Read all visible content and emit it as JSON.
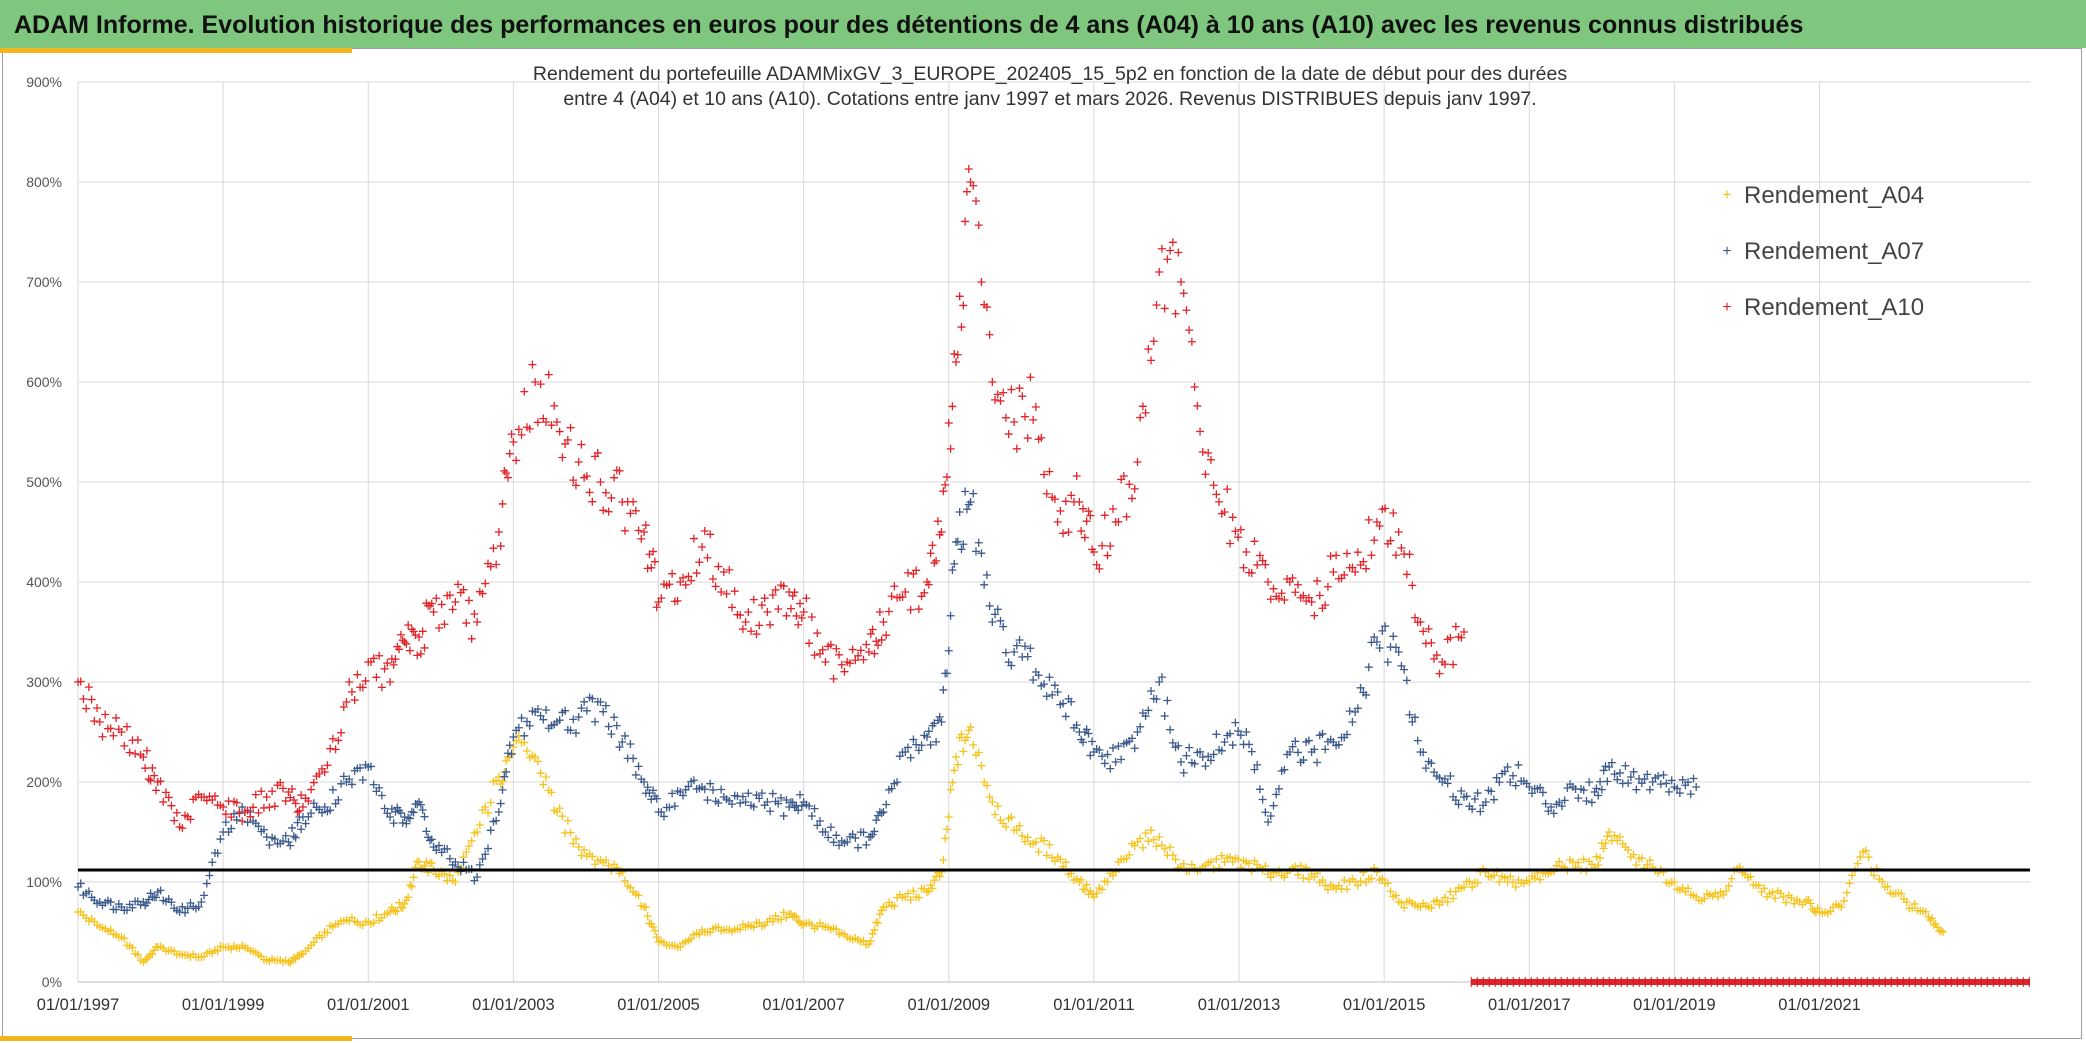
{
  "banner": {
    "title": "ADAM Informe. Evolution historique des performances en euros pour des détentions de 4 ans (A04) à 10 ans (A10) avec les revenus connus distribués"
  },
  "colors": {
    "banner_bg": "#7fc77e",
    "accent": "#f2b51c",
    "series_a04": "#f5c31c",
    "series_a07": "#3d5a8c",
    "series_a10": "#e0242a",
    "reference_line": "#000000",
    "grid": "#d9d9d9"
  },
  "chart_data": {
    "type": "scatter",
    "title_line1": "Rendement du portefeuille ADAMMixGV_3_EUROPE_202405_15_5p2  en fonction de la date de début pour des durées",
    "title_line2": "entre 4 (A04) et 10 ans (A10). Cotations entre janv 1997 et mars 2026. Revenus DISTRIBUES depuis janv 1997.",
    "xlabel": "",
    "ylabel": "",
    "x_unit": "year (decimal)",
    "x_range": [
      1997,
      2023.9
    ],
    "x_ticks": [
      {
        "value": 1997,
        "label": "01/01/1997"
      },
      {
        "value": 1999,
        "label": "01/01/1999"
      },
      {
        "value": 2001,
        "label": "01/01/2001"
      },
      {
        "value": 2003,
        "label": "01/01/2003"
      },
      {
        "value": 2005,
        "label": "01/01/2005"
      },
      {
        "value": 2007,
        "label": "01/01/2007"
      },
      {
        "value": 2009,
        "label": "01/01/2009"
      },
      {
        "value": 2011,
        "label": "01/01/2011"
      },
      {
        "value": 2013,
        "label": "01/01/2013"
      },
      {
        "value": 2015,
        "label": "01/01/2015"
      },
      {
        "value": 2017,
        "label": "01/01/2017"
      },
      {
        "value": 2019,
        "label": "01/01/2019"
      },
      {
        "value": 2021,
        "label": "01/01/2021"
      }
    ],
    "ylim": [
      0,
      900
    ],
    "y_ticks": [
      {
        "value": 0,
        "label": "0%"
      },
      {
        "value": 100,
        "label": "100%"
      },
      {
        "value": 200,
        "label": "200%"
      },
      {
        "value": 300,
        "label": "300%"
      },
      {
        "value": 400,
        "label": "400%"
      },
      {
        "value": 500,
        "label": "500%"
      },
      {
        "value": 600,
        "label": "600%"
      },
      {
        "value": 700,
        "label": "700%"
      },
      {
        "value": 800,
        "label": "800%"
      },
      {
        "value": 900,
        "label": "900%"
      }
    ],
    "grid": true,
    "legend_position": "top-right",
    "reference_line": {
      "y": 112
    },
    "series": [
      {
        "name": "Rendement_A04",
        "marker": "+",
        "x": [
          1997.0,
          1997.3,
          1997.6,
          1997.9,
          1998.1,
          1998.4,
          1998.7,
          1999.0,
          1999.3,
          1999.6,
          1999.9,
          2000.1,
          2000.4,
          2000.7,
          2001.0,
          2001.3,
          2001.5,
          2001.7,
          2001.9,
          2002.2,
          2002.5,
          2002.8,
          2003.0,
          2003.3,
          2003.6,
          2003.9,
          2004.2,
          2004.5,
          2004.8,
          2005.0,
          2005.3,
          2005.6,
          2005.9,
          2006.2,
          2006.5,
          2006.8,
          2007.0,
          2007.3,
          2007.6,
          2007.9,
          2008.1,
          2008.4,
          2008.7,
          2008.9,
          2009.1,
          2009.3,
          2009.6,
          2009.9,
          2010.2,
          2010.5,
          2010.8,
          2011.0,
          2011.3,
          2011.6,
          2011.9,
          2012.2,
          2012.5,
          2012.8,
          2013.1,
          2013.4,
          2013.7,
          2014.0,
          2014.3,
          2014.6,
          2014.9,
          2015.2,
          2015.5,
          2015.8,
          2016.1,
          2016.4,
          2016.7,
          2017.0,
          2017.3,
          2017.6,
          2017.9,
          2018.1,
          2018.4,
          2018.7,
          2019.0,
          2019.3,
          2019.6,
          2019.9,
          2020.2,
          2020.5,
          2020.8,
          2021.0,
          2021.3,
          2021.6,
          2021.9,
          2022.2,
          2022.5,
          2022.7
        ],
        "y": [
          70,
          55,
          45,
          20,
          35,
          28,
          25,
          35,
          35,
          22,
          20,
          28,
          50,
          62,
          60,
          70,
          78,
          120,
          112,
          100,
          150,
          205,
          235,
          225,
          170,
          135,
          122,
          110,
          75,
          40,
          35,
          52,
          52,
          55,
          60,
          68,
          58,
          55,
          45,
          38,
          75,
          85,
          90,
          110,
          225,
          255,
          180,
          152,
          140,
          125,
          100,
          85,
          110,
          140,
          145,
          115,
          115,
          120,
          120,
          108,
          112,
          108,
          95,
          100,
          110,
          80,
          75,
          80,
          95,
          110,
          100,
          100,
          110,
          120,
          115,
          150,
          125,
          115,
          100,
          85,
          85,
          115,
          90,
          85,
          80,
          70,
          75,
          130,
          95,
          80,
          65,
          50
        ]
      },
      {
        "name": "Rendement_A07",
        "marker": "+",
        "x": [
          1997.0,
          1997.3,
          1997.6,
          1997.9,
          1998.1,
          1998.4,
          1998.7,
          1999.0,
          1999.3,
          1999.6,
          1999.9,
          2000.1,
          2000.4,
          2000.7,
          2001.0,
          2001.3,
          2001.5,
          2001.7,
          2001.9,
          2002.2,
          2002.5,
          2002.8,
          2003.0,
          2003.3,
          2003.6,
          2003.9,
          2004.2,
          2004.5,
          2004.8,
          2005.0,
          2005.3,
          2005.6,
          2005.9,
          2006.2,
          2006.5,
          2006.8,
          2007.0,
          2007.3,
          2007.6,
          2007.9,
          2008.1,
          2008.4,
          2008.7,
          2008.9,
          2009.1,
          2009.3,
          2009.6,
          2009.9,
          2010.2,
          2010.5,
          2010.8,
          2011.0,
          2011.3,
          2011.6,
          2011.9,
          2012.2,
          2012.5,
          2012.8,
          2013.1,
          2013.4,
          2013.7,
          2014.0,
          2014.3,
          2014.6,
          2014.9,
          2015.2,
          2015.5,
          2015.8,
          2016.1,
          2016.4,
          2016.7,
          2017.0,
          2017.3,
          2017.6,
          2017.9,
          2018.1,
          2018.4,
          2018.7,
          2019.0,
          2019.3
        ],
        "y": [
          95,
          80,
          75,
          80,
          90,
          70,
          80,
          150,
          170,
          145,
          140,
          165,
          175,
          200,
          215,
          165,
          165,
          180,
          135,
          120,
          105,
          170,
          245,
          270,
          260,
          265,
          280,
          240,
          200,
          170,
          190,
          195,
          185,
          180,
          180,
          175,
          180,
          150,
          140,
          145,
          170,
          230,
          245,
          260,
          440,
          480,
          360,
          330,
          310,
          290,
          250,
          230,
          220,
          250,
          300,
          220,
          225,
          240,
          250,
          160,
          230,
          230,
          240,
          270,
          340,
          330,
          230,
          200,
          185,
          180,
          215,
          195,
          175,
          195,
          190,
          215,
          205,
          200,
          195,
          195
        ]
      },
      {
        "name": "Rendement_A10",
        "marker": "+",
        "x": [
          1997.0,
          1997.3,
          1997.6,
          1997.9,
          1998.1,
          1998.4,
          1998.7,
          1999.0,
          1999.3,
          1999.6,
          1999.9,
          2000.1,
          2000.4,
          2000.7,
          2001.0,
          2001.3,
          2001.5,
          2001.7,
          2001.9,
          2002.2,
          2002.5,
          2002.8,
          2003.0,
          2003.3,
          2003.6,
          2003.9,
          2004.2,
          2004.5,
          2004.8,
          2005.0,
          2005.3,
          2005.6,
          2005.9,
          2006.2,
          2006.5,
          2006.8,
          2007.0,
          2007.3,
          2007.6,
          2007.9,
          2008.1,
          2008.4,
          2008.7,
          2008.9,
          2009.1,
          2009.3,
          2009.6,
          2009.9,
          2010.2,
          2010.5,
          2010.8,
          2011.0,
          2011.3,
          2011.6,
          2011.9,
          2012.2,
          2012.5,
          2012.8,
          2013.1,
          2013.4,
          2013.7,
          2014.0,
          2014.3,
          2014.6,
          2014.9,
          2015.2,
          2015.5,
          2015.8,
          2016.1
        ],
        "y": [
          300,
          260,
          250,
          225,
          200,
          155,
          185,
          175,
          170,
          185,
          190,
          175,
          210,
          280,
          320,
          300,
          340,
          345,
          370,
          380,
          360,
          450,
          540,
          600,
          560,
          520,
          500,
          480,
          450,
          380,
          400,
          435,
          410,
          360,
          370,
          390,
          370,
          320,
          320,
          330,
          360,
          390,
          400,
          450,
          620,
          800,
          600,
          560,
          575,
          460,
          480,
          430,
          460,
          520,
          710,
          700,
          530,
          470,
          430,
          400,
          400,
          380,
          410,
          410,
          460,
          450,
          360,
          320,
          350
        ]
      }
    ],
    "annotations": [
      {
        "type": "band",
        "x_start": 2016.2,
        "x_end": 2023.9,
        "y": 0,
        "series": "Rendement_A10"
      }
    ]
  }
}
